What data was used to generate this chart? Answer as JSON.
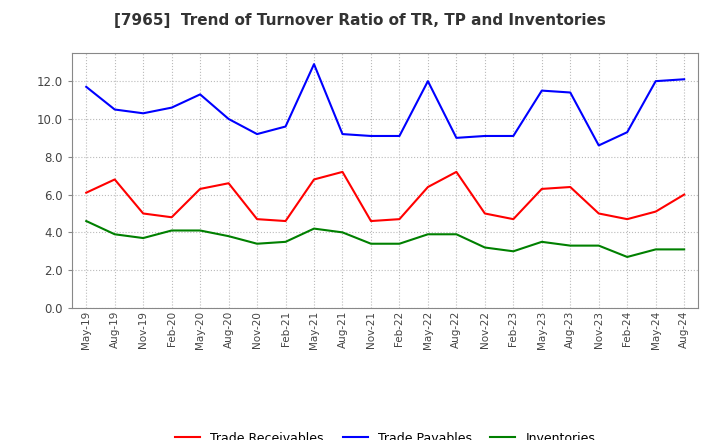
{
  "title": "[7965]  Trend of Turnover Ratio of TR, TP and Inventories",
  "x_labels": [
    "May-19",
    "Aug-19",
    "Nov-19",
    "Feb-20",
    "May-20",
    "Aug-20",
    "Nov-20",
    "Feb-21",
    "May-21",
    "Aug-21",
    "Nov-21",
    "Feb-22",
    "May-22",
    "Aug-22",
    "Nov-22",
    "Feb-23",
    "May-23",
    "Aug-23",
    "Nov-23",
    "Feb-24",
    "May-24",
    "Aug-24"
  ],
  "trade_receivables": [
    6.1,
    6.8,
    5.0,
    4.8,
    6.3,
    6.6,
    4.7,
    4.6,
    6.8,
    7.2,
    4.6,
    4.7,
    6.4,
    7.2,
    5.0,
    4.7,
    6.3,
    6.4,
    5.0,
    4.7,
    5.1,
    6.0
  ],
  "trade_payables": [
    11.7,
    10.5,
    10.3,
    10.6,
    11.3,
    10.0,
    9.2,
    9.6,
    12.9,
    9.2,
    9.1,
    9.1,
    12.0,
    9.0,
    9.1,
    9.1,
    11.5,
    11.4,
    8.6,
    9.3,
    12.0,
    12.1
  ],
  "inventories": [
    4.6,
    3.9,
    3.7,
    4.1,
    4.1,
    3.8,
    3.4,
    3.5,
    4.2,
    4.0,
    3.4,
    3.4,
    3.9,
    3.9,
    3.2,
    3.0,
    3.5,
    3.3,
    3.3,
    2.7,
    3.1,
    3.1
  ],
  "ylim": [
    0.0,
    13.5
  ],
  "yticks": [
    0.0,
    2.0,
    4.0,
    6.0,
    8.0,
    10.0,
    12.0
  ],
  "tr_color": "#ff0000",
  "tp_color": "#0000ff",
  "inv_color": "#008000",
  "legend_labels": [
    "Trade Receivables",
    "Trade Payables",
    "Inventories"
  ],
  "bg_color": "#ffffff",
  "grid_color": "#aaaaaa"
}
